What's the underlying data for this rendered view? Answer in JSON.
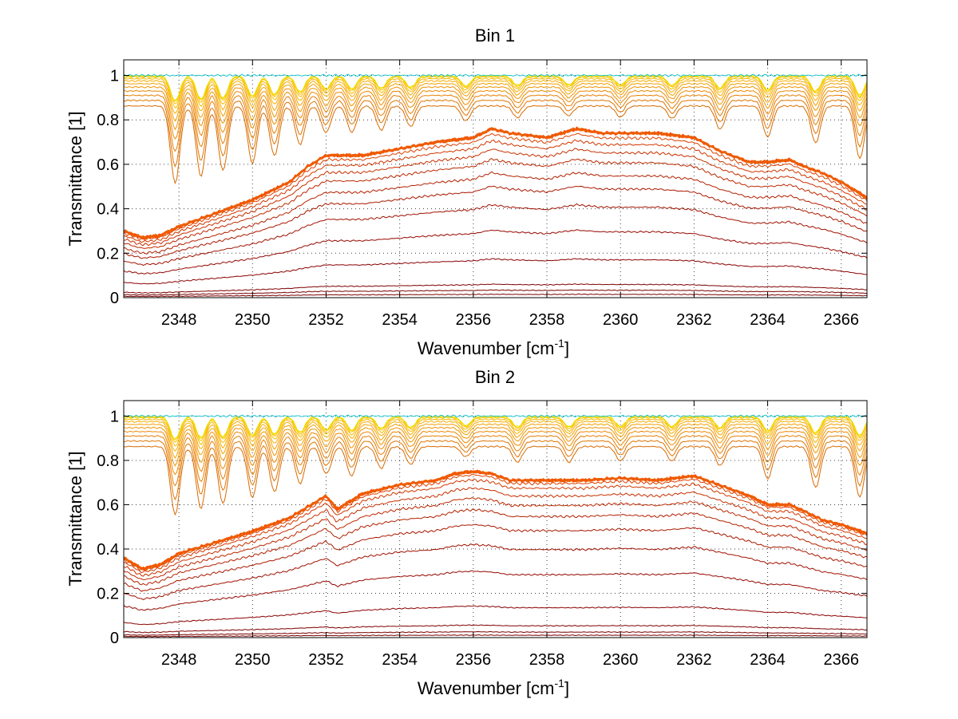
{
  "chart_data": [
    {
      "type": "line",
      "title": "Bin 1",
      "xlabel": "Wavenumber [cm",
      "xlabel_sup": "-1",
      "xlabel_end": "]",
      "ylabel": "Transmittance [1]",
      "xlim": [
        2346.5,
        2366.7
      ],
      "ylim": [
        0,
        1.07
      ],
      "xticks": [
        2348,
        2350,
        2352,
        2354,
        2356,
        2358,
        2360,
        2362,
        2364,
        2366
      ],
      "xtick_labels": [
        "2348",
        "2350",
        "2352",
        "2354",
        "2356",
        "2358",
        "2360",
        "2362",
        "2364",
        "2366"
      ],
      "yticks": [
        0,
        0.2,
        0.4,
        0.6,
        0.8,
        1
      ],
      "ytick_labels": [
        "0",
        "0.2",
        "0.4",
        "0.6",
        "0.8",
        "1"
      ],
      "grid": true,
      "absorption_lines": [
        2347.9,
        2348.6,
        2349.2,
        2350.0,
        2350.6,
        2351.3,
        2352.0,
        2352.7,
        2353.5,
        2354.3,
        2355.8,
        2357.2,
        2358.6,
        2360.0,
        2361.4,
        2362.7,
        2364.0,
        2365.3,
        2366.5
      ],
      "envelope": {
        "x": [
          2346.5,
          2347.0,
          2347.5,
          2348.0,
          2349.0,
          2350.0,
          2351.0,
          2351.5,
          2352.0,
          2353.0,
          2354.0,
          2355.0,
          2356.0,
          2356.5,
          2357.0,
          2358.0,
          2358.8,
          2359.5,
          2360.0,
          2361.0,
          2362.0,
          2362.7,
          2363.5,
          2364.0,
          2364.6,
          2365.0,
          2365.5,
          2366.0,
          2366.7
        ],
        "y": [
          0.3,
          0.27,
          0.28,
          0.32,
          0.38,
          0.44,
          0.52,
          0.59,
          0.64,
          0.64,
          0.67,
          0.7,
          0.72,
          0.76,
          0.74,
          0.72,
          0.76,
          0.74,
          0.74,
          0.74,
          0.72,
          0.66,
          0.61,
          0.61,
          0.62,
          0.59,
          0.56,
          0.52,
          0.45
        ]
      },
      "series": [
        {
          "scale": 0.02,
          "color": "#7a0000"
        },
        {
          "scale": 0.045,
          "color": "#7a0000"
        },
        {
          "scale": 0.08,
          "color": "#7f0000"
        },
        {
          "scale": 0.23,
          "color": "#8b0000"
        },
        {
          "scale": 0.4,
          "color": "#960800"
        },
        {
          "scale": 0.55,
          "color": "#a01000"
        },
        {
          "scale": 0.66,
          "color": "#aa1800"
        },
        {
          "scale": 0.74,
          "color": "#b42000"
        },
        {
          "scale": 0.82,
          "color": "#be2800"
        },
        {
          "scale": 0.88,
          "color": "#c83000"
        },
        {
          "scale": 0.93,
          "color": "#d23800"
        },
        {
          "scale": 0.97,
          "color": "#dc4000"
        },
        {
          "scale": 1.0,
          "color": "#ff4800"
        },
        {
          "scale": 1.0,
          "color": "#ff5000"
        },
        {
          "scale": 1.0,
          "color": "#e86000"
        },
        {
          "depth": 0.55,
          "color": "#d86a00"
        },
        {
          "depth": 0.45,
          "color": "#e07400"
        },
        {
          "depth": 0.36,
          "color": "#e87e00"
        },
        {
          "depth": 0.28,
          "color": "#ee8800"
        },
        {
          "depth": 0.21,
          "color": "#f09400"
        },
        {
          "depth": 0.15,
          "color": "#f4a000"
        },
        {
          "depth": 0.1,
          "color": "#f6ac00"
        },
        {
          "depth": 0.06,
          "color": "#f8b800"
        },
        {
          "depth": 0.03,
          "color": "#fac400"
        },
        {
          "depth": 0.015,
          "color": "#fcd000"
        },
        {
          "depth": 0.006,
          "color": "#e8e000"
        },
        {
          "depth": 0.0,
          "color": "#20c8d0"
        }
      ]
    },
    {
      "type": "line",
      "title": "Bin 2",
      "xlabel": "Wavenumber [cm",
      "xlabel_sup": "-1",
      "xlabel_end": "]",
      "ylabel": "Transmittance [1]",
      "xlim": [
        2346.5,
        2366.7
      ],
      "ylim": [
        0,
        1.07
      ],
      "xticks": [
        2348,
        2350,
        2352,
        2354,
        2356,
        2358,
        2360,
        2362,
        2364,
        2366
      ],
      "xtick_labels": [
        "2348",
        "2350",
        "2352",
        "2354",
        "2356",
        "2358",
        "2360",
        "2362",
        "2364",
        "2366"
      ],
      "yticks": [
        0,
        0.2,
        0.4,
        0.6,
        0.8,
        1
      ],
      "ytick_labels": [
        "0",
        "0.2",
        "0.4",
        "0.6",
        "0.8",
        "1"
      ],
      "grid": true,
      "absorption_lines": [
        2347.9,
        2348.6,
        2349.2,
        2350.0,
        2350.6,
        2351.3,
        2352.0,
        2352.7,
        2353.5,
        2354.3,
        2355.8,
        2357.2,
        2358.6,
        2360.0,
        2361.4,
        2362.7,
        2364.0,
        2365.3,
        2366.5
      ],
      "envelope": {
        "x": [
          2346.5,
          2347.0,
          2347.5,
          2348.0,
          2349.0,
          2350.0,
          2351.0,
          2351.5,
          2352.0,
          2352.3,
          2353.0,
          2354.0,
          2355.0,
          2355.5,
          2356.0,
          2356.5,
          2357.0,
          2358.0,
          2359.0,
          2360.0,
          2361.0,
          2362.0,
          2362.5,
          2363.5,
          2364.0,
          2364.6,
          2365.0,
          2365.5,
          2366.0,
          2366.7
        ],
        "y": [
          0.36,
          0.31,
          0.33,
          0.38,
          0.43,
          0.48,
          0.54,
          0.59,
          0.64,
          0.58,
          0.65,
          0.69,
          0.71,
          0.74,
          0.75,
          0.74,
          0.71,
          0.71,
          0.71,
          0.72,
          0.71,
          0.73,
          0.7,
          0.64,
          0.6,
          0.6,
          0.57,
          0.53,
          0.51,
          0.47
        ]
      },
      "series": [
        {
          "scale": 0.015,
          "color": "#7a0000"
        },
        {
          "scale": 0.035,
          "color": "#7a0000"
        },
        {
          "scale": 0.075,
          "color": "#7f0000"
        },
        {
          "scale": 0.19,
          "color": "#8b0000"
        },
        {
          "scale": 0.4,
          "color": "#960800"
        },
        {
          "scale": 0.56,
          "color": "#a01000"
        },
        {
          "scale": 0.68,
          "color": "#aa1800"
        },
        {
          "scale": 0.77,
          "color": "#b42000"
        },
        {
          "scale": 0.84,
          "color": "#be2800"
        },
        {
          "scale": 0.9,
          "color": "#c83000"
        },
        {
          "scale": 0.95,
          "color": "#d23800"
        },
        {
          "scale": 0.98,
          "color": "#dc4000"
        },
        {
          "scale": 1.0,
          "color": "#ff4800"
        },
        {
          "scale": 1.0,
          "color": "#ff5000"
        },
        {
          "scale": 1.0,
          "color": "#e86000"
        },
        {
          "depth": 0.55,
          "color": "#d86a00"
        },
        {
          "depth": 0.45,
          "color": "#e07400"
        },
        {
          "depth": 0.36,
          "color": "#e87e00"
        },
        {
          "depth": 0.28,
          "color": "#ee8800"
        },
        {
          "depth": 0.21,
          "color": "#f09400"
        },
        {
          "depth": 0.15,
          "color": "#f4a000"
        },
        {
          "depth": 0.1,
          "color": "#f6ac00"
        },
        {
          "depth": 0.06,
          "color": "#f8b800"
        },
        {
          "depth": 0.03,
          "color": "#fac400"
        },
        {
          "depth": 0.015,
          "color": "#fcd000"
        },
        {
          "depth": 0.006,
          "color": "#e8e000"
        },
        {
          "depth": 0.0,
          "color": "#20c8d0"
        }
      ]
    }
  ]
}
